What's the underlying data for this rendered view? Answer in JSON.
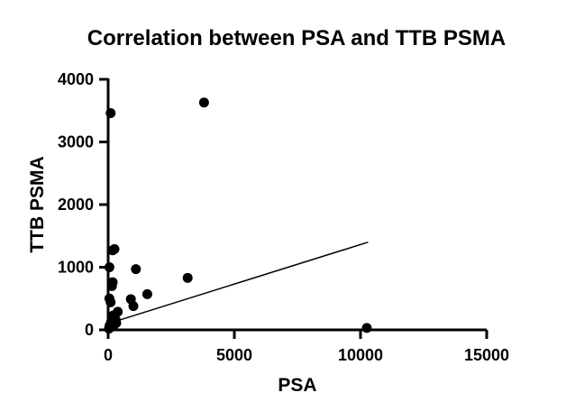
{
  "chart_data": {
    "type": "scatter",
    "title": "Correlation between PSA and TTB PSMA",
    "xlabel": "PSA",
    "ylabel": "TTB PSMA",
    "xlim": [
      0,
      15000
    ],
    "ylim": [
      0,
      4000
    ],
    "xticks": [
      0,
      5000,
      10000,
      15000
    ],
    "yticks": [
      0,
      1000,
      2000,
      3000,
      4000
    ],
    "xtick_labels": [
      "0",
      "5000",
      "10000",
      "15000"
    ],
    "ytick_labels": [
      "0",
      "1000",
      "2000",
      "3000",
      "4000"
    ],
    "grid": false,
    "legend": "none",
    "point_color": "#000000",
    "points": [
      {
        "x": 3800,
        "y": 3630
      },
      {
        "x": 100,
        "y": 3460
      },
      {
        "x": 250,
        "y": 1290
      },
      {
        "x": 180,
        "y": 1270
      },
      {
        "x": 50,
        "y": 1000
      },
      {
        "x": 1100,
        "y": 970
      },
      {
        "x": 3150,
        "y": 830
      },
      {
        "x": 180,
        "y": 760
      },
      {
        "x": 150,
        "y": 700
      },
      {
        "x": 1550,
        "y": 570
      },
      {
        "x": 50,
        "y": 500
      },
      {
        "x": 900,
        "y": 490
      },
      {
        "x": 100,
        "y": 440
      },
      {
        "x": 1000,
        "y": 380
      },
      {
        "x": 380,
        "y": 290
      },
      {
        "x": 200,
        "y": 230
      },
      {
        "x": 300,
        "y": 160
      },
      {
        "x": 120,
        "y": 130
      },
      {
        "x": 320,
        "y": 110
      },
      {
        "x": 60,
        "y": 70
      },
      {
        "x": 200,
        "y": 60
      },
      {
        "x": 90,
        "y": 40
      },
      {
        "x": 30,
        "y": 20
      },
      {
        "x": 10250,
        "y": 30
      }
    ],
    "trend_line": {
      "x": [
        0,
        10300
      ],
      "y": [
        100,
        1400
      ]
    }
  }
}
